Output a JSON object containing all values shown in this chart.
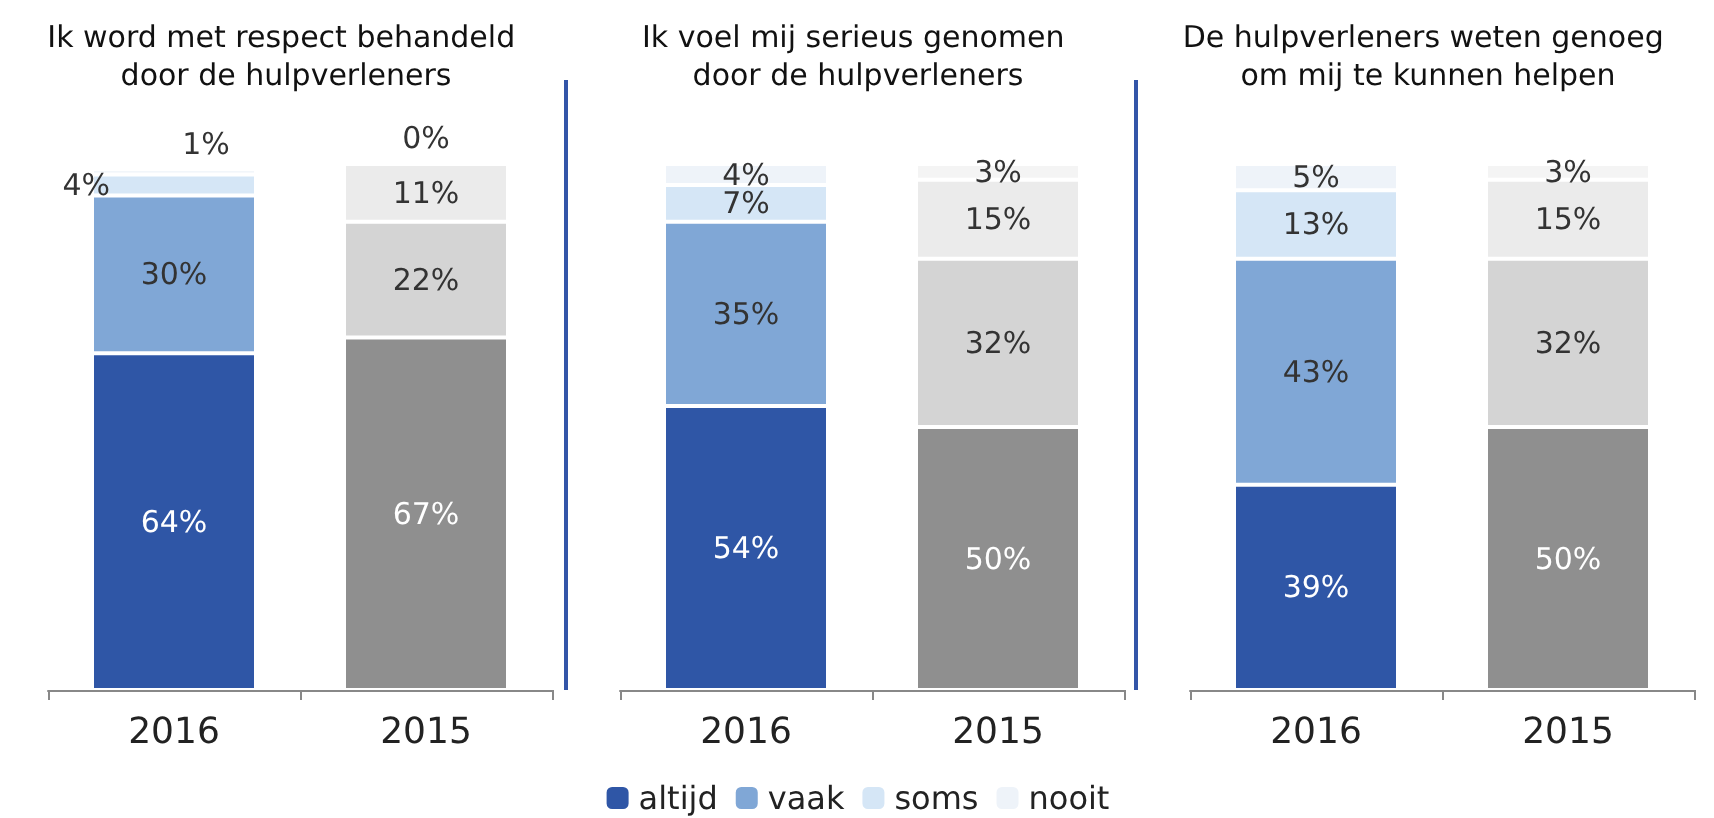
{
  "chart_data": [
    {
      "type": "bar",
      "title": "Ik word met respect behandeld door de hulpverleners",
      "categories": [
        "2016",
        "2015"
      ],
      "stacked": true,
      "legend": false,
      "series": [
        {
          "colors": [
            "#2f56a6",
            "#8f8f8f"
          ],
          "values": [
            64,
            67
          ],
          "value_labels": [
            "64%",
            "67%"
          ]
        },
        {
          "colors": [
            "#80a7d6",
            "#d4d4d4"
          ],
          "values": [
            30,
            22
          ],
          "value_labels": [
            "30%",
            "22%"
          ]
        },
        {
          "colors": [
            "#d5e6f6",
            "#ebebeb"
          ],
          "values": [
            4,
            11
          ],
          "value_labels": [
            "4%",
            "11%"
          ]
        },
        {
          "colors": [
            "#eef3f9",
            "#f4f4f4"
          ],
          "values": [
            1,
            0
          ],
          "value_labels": [
            "1%",
            "0%"
          ]
        }
      ]
    },
    {
      "type": "bar",
      "title": "Ik voel mij serieus genomen door de hulpverleners",
      "categories": [
        "2016",
        "2015"
      ],
      "stacked": true,
      "legend": "bottom",
      "series": [
        {
          "name": "altijd",
          "colors": [
            "#2f56a6",
            "#8f8f8f"
          ],
          "values": [
            54,
            50
          ],
          "value_labels": [
            "54%",
            "50%"
          ]
        },
        {
          "name": "vaak",
          "colors": [
            "#80a7d6",
            "#d4d4d4"
          ],
          "values": [
            35,
            32
          ],
          "value_labels": [
            "35%",
            "32%"
          ]
        },
        {
          "name": "soms",
          "colors": [
            "#d5e6f6",
            "#ebebeb"
          ],
          "values": [
            7,
            15
          ],
          "value_labels": [
            "7%",
            "15%"
          ]
        },
        {
          "name": "nooit",
          "colors": [
            "#eef3f9",
            "#f4f4f4"
          ],
          "values": [
            4,
            3
          ],
          "value_labels": [
            "4%",
            "3%"
          ]
        }
      ]
    },
    {
      "type": "bar",
      "title": "De hulpverleners weten genoeg om mij te kunnen helpen",
      "categories": [
        "2016",
        "2015"
      ],
      "stacked": true,
      "legend": false,
      "series": [
        {
          "colors": [
            "#2f56a6",
            "#8f8f8f"
          ],
          "values": [
            39,
            50
          ],
          "value_labels": [
            "39%",
            "50%"
          ]
        },
        {
          "colors": [
            "#80a7d6",
            "#d4d4d4"
          ],
          "values": [
            43,
            32
          ],
          "value_labels": [
            "43%",
            "32%"
          ]
        },
        {
          "colors": [
            "#d5e6f6",
            "#ebebeb"
          ],
          "values": [
            13,
            15
          ],
          "value_labels": [
            "13%",
            "15%"
          ]
        },
        {
          "colors": [
            "#eef3f9",
            "#f4f4f4"
          ],
          "values": [
            5,
            3
          ],
          "value_labels": [
            "5%",
            "3%"
          ]
        }
      ]
    }
  ]
}
